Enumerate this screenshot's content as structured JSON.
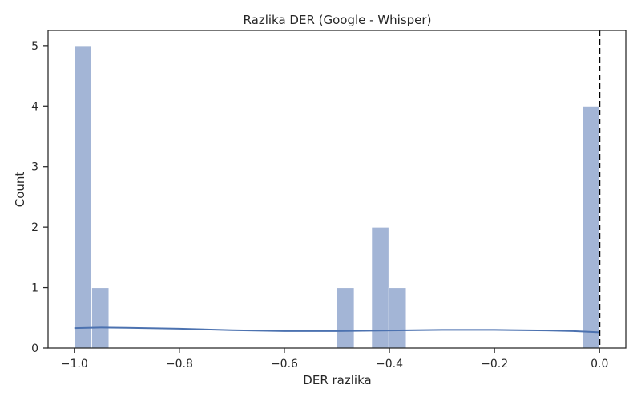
{
  "chart_data": {
    "type": "bar",
    "title": "Razlika DER (Google - Whisper)",
    "xlabel": "DER razlika",
    "ylabel": "Count",
    "xlim": [
      -1.05,
      0.05
    ],
    "ylim": [
      0,
      5.25
    ],
    "x_ticks": [
      -1.0,
      -0.8,
      -0.6,
      -0.4,
      -0.2,
      0.0
    ],
    "x_tick_labels": [
      "−1.0",
      "−0.8",
      "−0.6",
      "−0.4",
      "−0.2",
      "0.0"
    ],
    "y_ticks": [
      0,
      1,
      2,
      3,
      4,
      5
    ],
    "y_tick_labels": [
      "0",
      "1",
      "2",
      "3",
      "4",
      "5"
    ],
    "bins": [
      {
        "x0": -1.0,
        "x1": -0.967,
        "count": 5
      },
      {
        "x0": -0.967,
        "x1": -0.934,
        "count": 1
      },
      {
        "x0": -0.5,
        "x1": -0.467,
        "count": 1
      },
      {
        "x0": -0.434,
        "x1": -0.401,
        "count": 2
      },
      {
        "x0": -0.401,
        "x1": -0.368,
        "count": 1
      },
      {
        "x0": -0.033,
        "x1": 0.0,
        "count": 4
      }
    ],
    "kde": {
      "x": [
        -1.0,
        -0.95,
        -0.9,
        -0.8,
        -0.7,
        -0.6,
        -0.5,
        -0.4,
        -0.3,
        -0.2,
        -0.1,
        -0.05,
        0.0
      ],
      "y": [
        0.33,
        0.34,
        0.335,
        0.32,
        0.295,
        0.28,
        0.28,
        0.29,
        0.3,
        0.3,
        0.29,
        0.28,
        0.26
      ]
    },
    "reference_line_x": 0.0,
    "colors": {
      "bar": "#a3b5d6",
      "kde": "#4c72b0",
      "reference_line": "#000000",
      "axes": "#262626"
    },
    "grid": false
  }
}
